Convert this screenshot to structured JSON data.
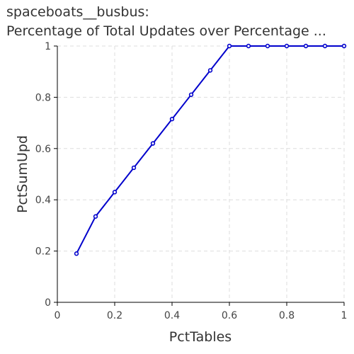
{
  "chart_data": {
    "type": "line",
    "title_lines": [
      "spaceboats__busbus:",
      "Percentage of Total Updates over Percentage ..."
    ],
    "xlabel": "PctTables",
    "ylabel": "PctSumUpd",
    "xlim": [
      0,
      1
    ],
    "ylim": [
      0,
      1
    ],
    "x_ticks": [
      "0",
      "0.2",
      "0.4",
      "0.6",
      "0.8",
      "1"
    ],
    "y_ticks": [
      "0",
      "0.2",
      "0.4",
      "0.6",
      "0.8",
      "1"
    ],
    "grid": true,
    "series_color": "#0000cc",
    "x": [
      0.0667,
      0.1333,
      0.2,
      0.2667,
      0.3333,
      0.4,
      0.4667,
      0.5333,
      0.6,
      0.6667,
      0.7333,
      0.8,
      0.8667,
      0.9333,
      1.0
    ],
    "values": [
      0.19,
      0.335,
      0.43,
      0.525,
      0.62,
      0.715,
      0.81,
      0.905,
      1.0,
      1.0,
      1.0,
      1.0,
      1.0,
      1.0,
      1.0
    ]
  }
}
